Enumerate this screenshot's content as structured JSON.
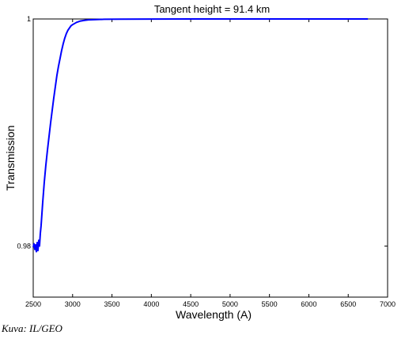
{
  "chart_data": {
    "type": "line",
    "title": "Tangent height = 91.4 km",
    "xlabel": "Wavelength (A)",
    "ylabel": "Transmission",
    "xlim": [
      2500,
      7000
    ],
    "ylim": [
      0.9755,
      1.0
    ],
    "xticks": [
      2500,
      3000,
      3500,
      4000,
      4500,
      5000,
      5500,
      6000,
      6500,
      7000
    ],
    "yticks": [
      0.98,
      1
    ],
    "ytick_labels": [
      "0.98",
      "1"
    ],
    "grid": false,
    "series": [
      {
        "color": "#0000ff",
        "x": [
          2500,
          2510,
          2520,
          2530,
          2540,
          2550,
          2560,
          2570,
          2580,
          2590,
          2600,
          2620,
          2640,
          2660,
          2680,
          2700,
          2720,
          2740,
          2760,
          2780,
          2800,
          2820,
          2840,
          2860,
          2880,
          2900,
          2920,
          2940,
          2960,
          2980,
          3000,
          3050,
          3100,
          3150,
          3200,
          3300,
          3400,
          3600,
          4000,
          4500,
          5000,
          5500,
          6000,
          6500,
          6750
        ],
        "y": [
          0.9799,
          0.9802,
          0.9797,
          0.9801,
          0.9795,
          0.9803,
          0.9796,
          0.9805,
          0.98,
          0.9811,
          0.9818,
          0.9838,
          0.9856,
          0.9871,
          0.9884,
          0.9896,
          0.9908,
          0.9919,
          0.993,
          0.994,
          0.995,
          0.9958,
          0.9965,
          0.9972,
          0.9978,
          0.9983,
          0.9987,
          0.999,
          0.9992,
          0.9994,
          0.9995,
          0.9997,
          0.99982,
          0.99988,
          0.99992,
          0.99995,
          0.99997,
          0.99998,
          0.99999,
          1.0,
          1.0,
          1.0,
          1.0,
          1.0,
          1.0
        ]
      }
    ]
  },
  "credit": "Kuva: IL/GEO"
}
